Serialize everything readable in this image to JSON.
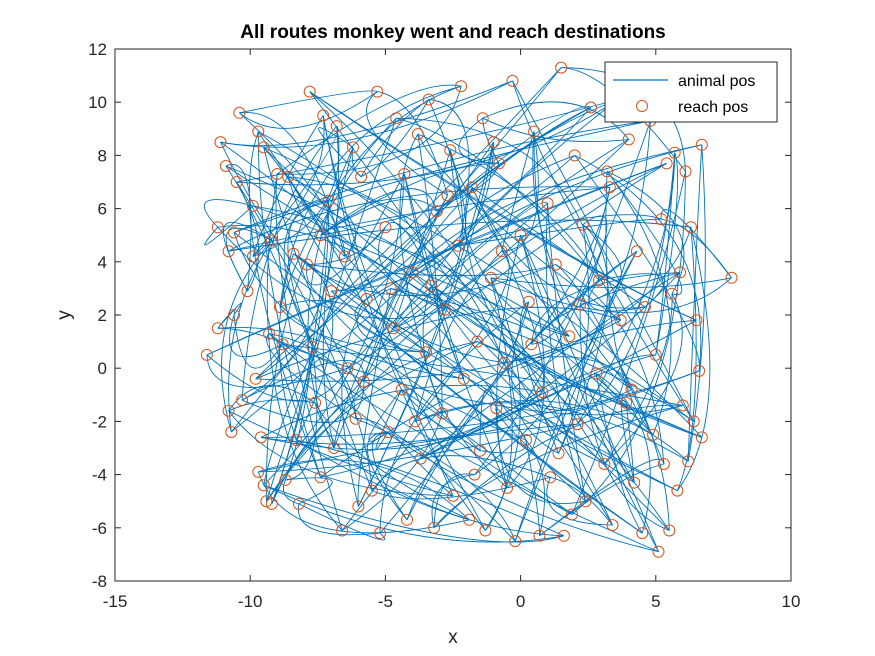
{
  "chart_data": {
    "type": "line",
    "title": "All routes monkey went and reach destinations",
    "xlabel": "x",
    "ylabel": "y",
    "xlim": [
      -15,
      10
    ],
    "ylim": [
      -8,
      12
    ],
    "xticks": [
      -15,
      -10,
      -5,
      0,
      5,
      10
    ],
    "yticks": [
      -8,
      -6,
      -4,
      -2,
      0,
      2,
      4,
      6,
      8,
      10,
      12
    ],
    "x_tick_labels": [
      "-15",
      "-10",
      "-5",
      "0",
      "5",
      "10"
    ],
    "y_tick_labels": [
      "-8",
      "-6",
      "-4",
      "-2",
      "0",
      "2",
      "4",
      "6",
      "8",
      "10",
      "12"
    ],
    "grid": false,
    "legend_position": "top-right",
    "legend": [
      "animal pos",
      "reach pos"
    ],
    "colors": {
      "animal_pos": "#0072BD",
      "reach_pos": "#D95319"
    },
    "series": [
      {
        "name": "reach pos",
        "marker": "circle",
        "points": [
          [
            -11.6,
            0.5
          ],
          [
            -11.2,
            1.5
          ],
          [
            -11.2,
            5.3
          ],
          [
            -11.1,
            8.5
          ],
          [
            -10.9,
            7.6
          ],
          [
            -10.8,
            4.4
          ],
          [
            -10.8,
            -1.6
          ],
          [
            -10.7,
            -2.4
          ],
          [
            -10.6,
            2.0
          ],
          [
            -10.6,
            5.1
          ],
          [
            -10.5,
            7.0
          ],
          [
            -10.4,
            9.6
          ],
          [
            -10.3,
            -1.2
          ],
          [
            -10.1,
            2.9
          ],
          [
            -9.9,
            6.1
          ],
          [
            -9.8,
            -0.4
          ],
          [
            -9.7,
            8.9
          ],
          [
            -9.7,
            -3.9
          ],
          [
            -9.6,
            -2.6
          ],
          [
            -9.5,
            8.3
          ],
          [
            -9.5,
            -4.4
          ],
          [
            -9.4,
            -5.0
          ],
          [
            -9.3,
            1.3
          ],
          [
            -9.2,
            4.8
          ],
          [
            -9.2,
            -5.1
          ],
          [
            -9.0,
            7.3
          ],
          [
            -8.9,
            2.3
          ],
          [
            -8.7,
            -4.2
          ],
          [
            -8.6,
            7.2
          ],
          [
            -8.4,
            4.3
          ],
          [
            -8.3,
            -2.7
          ],
          [
            -8.2,
            -5.1
          ],
          [
            -7.9,
            3.9
          ],
          [
            -7.8,
            10.4
          ],
          [
            -7.7,
            0.8
          ],
          [
            -7.6,
            -1.3
          ],
          [
            -7.4,
            -4.1
          ],
          [
            -7.3,
            9.5
          ],
          [
            -7.1,
            6.3
          ],
          [
            -7.0,
            2.9
          ],
          [
            -6.9,
            -3.0
          ],
          [
            -6.8,
            9.1
          ],
          [
            -6.6,
            -6.1
          ],
          [
            -6.5,
            4.2
          ],
          [
            -6.4,
            0.0
          ],
          [
            -6.1,
            -1.9
          ],
          [
            -5.9,
            7.2
          ],
          [
            -5.7,
            2.6
          ],
          [
            -5.5,
            -4.6
          ],
          [
            -5.3,
            10.4
          ],
          [
            -5.2,
            -6.2
          ],
          [
            -5.0,
            5.3
          ],
          [
            -4.9,
            -2.4
          ],
          [
            -4.7,
            1.5
          ],
          [
            -4.6,
            9.4
          ],
          [
            -4.4,
            -0.8
          ],
          [
            -4.3,
            7.3
          ],
          [
            -4.2,
            -5.7
          ],
          [
            -4.0,
            3.6
          ],
          [
            -3.8,
            8.8
          ],
          [
            -3.7,
            -3.4
          ],
          [
            -3.5,
            0.6
          ],
          [
            -3.4,
            10.1
          ],
          [
            -3.2,
            -6.0
          ],
          [
            -3.1,
            5.9
          ],
          [
            -2.9,
            -1.7
          ],
          [
            -2.8,
            2.2
          ],
          [
            -2.6,
            8.2
          ],
          [
            -2.5,
            -4.8
          ],
          [
            -2.3,
            4.6
          ],
          [
            -2.2,
            10.6
          ],
          [
            -2.1,
            -0.4
          ],
          [
            -1.9,
            -5.7
          ],
          [
            -1.8,
            6.8
          ],
          [
            -1.6,
            1.0
          ],
          [
            -1.5,
            -3.1
          ],
          [
            -1.4,
            9.4
          ],
          [
            -1.3,
            -6.1
          ],
          [
            -1.1,
            3.4
          ],
          [
            -0.9,
            -1.5
          ],
          [
            -0.8,
            7.7
          ],
          [
            -0.6,
            0.2
          ],
          [
            -0.5,
            -4.5
          ],
          [
            -0.3,
            10.8
          ],
          [
            -0.2,
            -6.5
          ],
          [
            0.0,
            5.0
          ],
          [
            0.2,
            -2.7
          ],
          [
            0.3,
            2.5
          ],
          [
            0.5,
            8.9
          ],
          [
            0.7,
            -6.3
          ],
          [
            0.8,
            -0.9
          ],
          [
            1.0,
            6.2
          ],
          [
            1.1,
            -4.1
          ],
          [
            1.3,
            3.9
          ],
          [
            1.5,
            11.3
          ],
          [
            1.6,
            -6.3
          ],
          [
            1.8,
            1.2
          ],
          [
            2.0,
            8.0
          ],
          [
            2.1,
            -2.1
          ],
          [
            2.3,
            5.4
          ],
          [
            2.4,
            -5.0
          ],
          [
            2.6,
            9.8
          ],
          [
            2.8,
            -0.2
          ],
          [
            2.9,
            3.3
          ],
          [
            3.1,
            -3.6
          ],
          [
            3.3,
            6.8
          ],
          [
            3.4,
            -5.9
          ],
          [
            3.6,
            10.1
          ],
          [
            3.7,
            1.8
          ],
          [
            3.9,
            -1.3
          ],
          [
            4.0,
            8.6
          ],
          [
            4.2,
            -4.3
          ],
          [
            4.3,
            4.4
          ],
          [
            4.5,
            -6.2
          ],
          [
            4.6,
            2.3
          ],
          [
            4.8,
            9.3
          ],
          [
            4.9,
            -2.5
          ],
          [
            5.0,
            0.5
          ],
          [
            5.1,
            -6.9
          ],
          [
            5.2,
            5.6
          ],
          [
            5.3,
            -3.6
          ],
          [
            5.4,
            7.7
          ],
          [
            5.5,
            -6.1
          ],
          [
            5.6,
            2.8
          ],
          [
            5.7,
            8.1
          ],
          [
            5.8,
            -4.6
          ],
          [
            5.9,
            3.6
          ],
          [
            6.0,
            -1.4
          ],
          [
            6.1,
            7.4
          ],
          [
            6.2,
            -3.5
          ],
          [
            6.3,
            5.3
          ],
          [
            6.4,
            -2.0
          ],
          [
            6.5,
            1.8
          ],
          [
            6.6,
            -0.1
          ],
          [
            6.7,
            8.4
          ],
          [
            6.7,
            -2.6
          ],
          [
            7.8,
            3.4
          ],
          [
            -8.8,
            0.9
          ],
          [
            -9.9,
            4.2
          ],
          [
            -6.2,
            8.3
          ],
          [
            -5.8,
            -0.5
          ],
          [
            -4.8,
            3.0
          ],
          [
            -3.9,
            -2.0
          ],
          [
            -2.7,
            6.5
          ],
          [
            -1.7,
            -4.0
          ],
          [
            -0.7,
            4.4
          ],
          [
            0.4,
            0.9
          ],
          [
            1.4,
            -3.2
          ],
          [
            2.2,
            2.4
          ],
          [
            3.2,
            7.4
          ],
          [
            4.1,
            -0.8
          ],
          [
            -7.4,
            5.0
          ],
          [
            -6.0,
            -5.2
          ],
          [
            -3.3,
            3.1
          ],
          [
            -1.0,
            8.5
          ],
          [
            1.9,
            -5.5
          ]
        ]
      }
    ]
  }
}
